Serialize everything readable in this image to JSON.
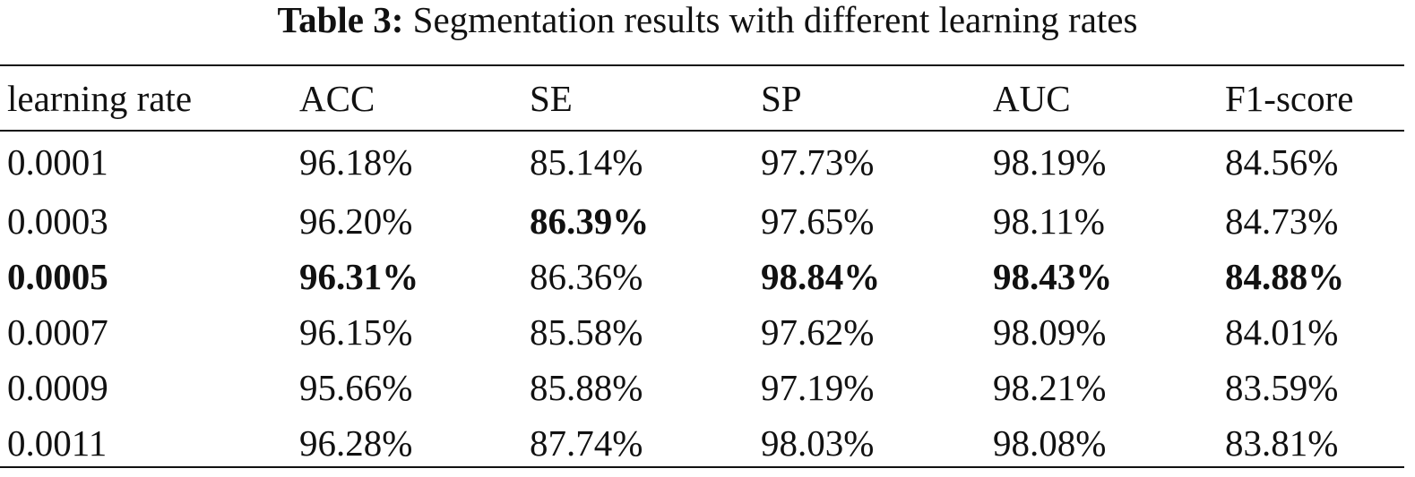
{
  "caption": {
    "label": "Table 3:",
    "text": "Segmentation results with different learning rates"
  },
  "table": {
    "headers": [
      "learning rate",
      "ACC",
      "SE",
      "SP",
      "AUC",
      "F1-score"
    ],
    "rows": [
      [
        "0.0001",
        "96.18%",
        "85.14%",
        "97.73%",
        "98.19%",
        "84.56%"
      ],
      [
        "0.0003",
        "96.20%",
        "86.39%",
        "97.65%",
        "98.11%",
        "84.73%"
      ],
      [
        "0.0005",
        "96.31%",
        "86.36%",
        "98.84%",
        "98.43%",
        "84.88%"
      ],
      [
        "0.0007",
        "96.15%",
        "85.58%",
        "97.62%",
        "98.09%",
        "84.01%"
      ],
      [
        "0.0009",
        "95.66%",
        "85.88%",
        "97.19%",
        "98.21%",
        "83.59%"
      ],
      [
        "0.0011",
        "96.28%",
        "87.74%",
        "98.03%",
        "98.08%",
        "83.81%"
      ]
    ]
  }
}
